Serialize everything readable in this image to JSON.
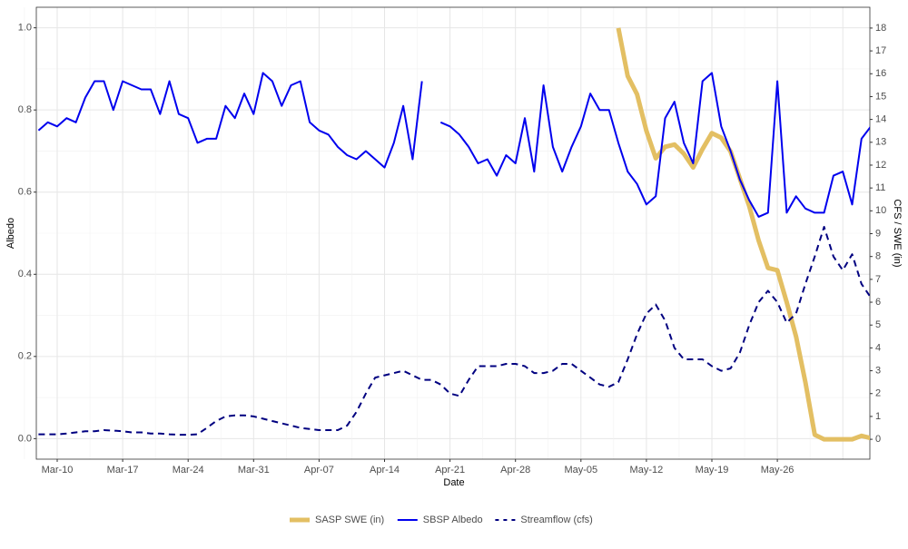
{
  "chart_data": {
    "type": "line",
    "x_label": "Date",
    "y_label": "Albedo",
    "y2_label": "CFS / SWE (in)",
    "categories": [
      "Mar-08",
      "Mar-09",
      "Mar-10",
      "Mar-11",
      "Mar-12",
      "Mar-13",
      "Mar-14",
      "Mar-15",
      "Mar-16",
      "Mar-17",
      "Mar-18",
      "Mar-19",
      "Mar-20",
      "Mar-21",
      "Mar-22",
      "Mar-23",
      "Mar-24",
      "Mar-25",
      "Mar-26",
      "Mar-27",
      "Mar-28",
      "Mar-29",
      "Mar-30",
      "Mar-31",
      "Apr-01",
      "Apr-02",
      "Apr-03",
      "Apr-04",
      "Apr-05",
      "Apr-06",
      "Apr-07",
      "Apr-08",
      "Apr-09",
      "Apr-10",
      "Apr-11",
      "Apr-12",
      "Apr-13",
      "Apr-14",
      "Apr-15",
      "Apr-16",
      "Apr-17",
      "Apr-18",
      "Apr-19",
      "Apr-20",
      "Apr-21",
      "Apr-22",
      "Apr-23",
      "Apr-24",
      "Apr-25",
      "Apr-26",
      "Apr-27",
      "Apr-28",
      "Apr-29",
      "Apr-30",
      "May-01",
      "May-02",
      "May-03",
      "May-04",
      "May-05",
      "May-06",
      "May-07",
      "May-08",
      "May-09",
      "May-10",
      "May-11",
      "May-12",
      "May-13",
      "May-14",
      "May-15",
      "May-16",
      "May-17",
      "May-18",
      "May-19",
      "May-20",
      "May-21",
      "May-22",
      "May-23",
      "May-24",
      "May-25",
      "May-26",
      "May-27",
      "May-28",
      "May-29",
      "May-30",
      "May-31",
      "Jun-01",
      "Jun-02",
      "Jun-03",
      "Jun-04",
      "Jun-05"
    ],
    "xticks": [
      "Mar-10",
      "Mar-17",
      "Mar-24",
      "Mar-31",
      "Apr-07",
      "Apr-14",
      "Apr-21",
      "Apr-28",
      "May-05",
      "May-12",
      "May-19",
      "May-26"
    ],
    "ylim": [
      -0.05,
      1.05
    ],
    "yticks": [
      {
        "value": 0,
        "label": "0.0"
      },
      0.2,
      0.4,
      0.6,
      0.8,
      {
        "value": 1,
        "label": "1.0"
      }
    ],
    "y2lim": [
      -0.87,
      18.91
    ],
    "y2ticks": [
      0,
      1,
      2,
      3,
      4,
      5,
      6,
      7,
      8,
      9,
      10,
      11,
      12,
      13,
      14,
      15,
      16,
      17,
      18
    ],
    "grid": true,
    "legend": "bottom",
    "series": [
      {
        "name": "SASP SWE (in)",
        "color": "#e3bf63",
        "axis": "y2",
        "style": "solid",
        "width": 5,
        "values": [
          null,
          null,
          null,
          null,
          null,
          null,
          null,
          null,
          null,
          null,
          null,
          null,
          null,
          null,
          null,
          null,
          null,
          null,
          null,
          null,
          null,
          null,
          null,
          null,
          null,
          null,
          null,
          null,
          null,
          null,
          null,
          null,
          null,
          null,
          null,
          null,
          null,
          null,
          null,
          null,
          null,
          null,
          null,
          null,
          null,
          null,
          null,
          null,
          null,
          null,
          null,
          null,
          null,
          null,
          null,
          null,
          null,
          null,
          null,
          null,
          null,
          null,
          18,
          15.9,
          15.1,
          13.5,
          12.3,
          12.8,
          12.9,
          12.5,
          11.9,
          12.7,
          13.4,
          13.2,
          12.6,
          11.4,
          10.2,
          8.7,
          7.5,
          7.4,
          6.0,
          4.5,
          2.5,
          0.2,
          0,
          0,
          0,
          0,
          0.15,
          0.05
        ]
      },
      {
        "name": "SBSP Albedo",
        "color": "#0000ee",
        "axis": "y",
        "style": "solid",
        "width": 2,
        "values": [
          0.75,
          0.77,
          0.76,
          0.78,
          0.77,
          0.83,
          0.87,
          0.87,
          0.8,
          0.87,
          0.86,
          0.85,
          0.85,
          0.79,
          0.87,
          0.79,
          0.78,
          0.72,
          0.73,
          0.73,
          0.81,
          0.78,
          0.84,
          0.79,
          0.89,
          0.87,
          0.81,
          0.86,
          0.87,
          0.77,
          0.75,
          0.74,
          0.71,
          0.69,
          0.68,
          0.7,
          0.68,
          0.66,
          0.72,
          0.81,
          0.68,
          0.87,
          null,
          0.77,
          0.76,
          0.74,
          0.71,
          0.67,
          0.68,
          0.64,
          0.69,
          0.67,
          0.78,
          0.65,
          0.86,
          0.71,
          0.65,
          0.71,
          0.76,
          0.84,
          0.8,
          0.8,
          0.72,
          0.65,
          0.62,
          0.57,
          0.59,
          0.78,
          0.82,
          0.72,
          0.67,
          0.87,
          0.89,
          0.76,
          0.7,
          0.63,
          0.58,
          0.54,
          0.55,
          0.87,
          0.55,
          0.59,
          0.56,
          0.55,
          0.55,
          0.64,
          0.65,
          0.57,
          0.73,
          0.76
        ]
      },
      {
        "name": "Streamflow (cfs)",
        "color": "#000080",
        "axis": "y2",
        "style": "dashed",
        "width": 2,
        "values": [
          0.22,
          0.22,
          0.22,
          0.25,
          0.3,
          0.35,
          0.35,
          0.4,
          0.38,
          0.35,
          0.3,
          0.3,
          0.25,
          0.25,
          0.22,
          0.2,
          0.2,
          0.22,
          0.5,
          0.8,
          1.0,
          1.05,
          1.05,
          1.0,
          0.9,
          0.8,
          0.7,
          0.6,
          0.5,
          0.45,
          0.4,
          0.4,
          0.4,
          0.6,
          1.2,
          2.0,
          2.7,
          2.8,
          2.9,
          3.0,
          2.8,
          2.6,
          2.6,
          2.4,
          2.0,
          1.9,
          2.6,
          3.2,
          3.2,
          3.2,
          3.3,
          3.3,
          3.2,
          2.9,
          2.9,
          3.0,
          3.3,
          3.3,
          3.0,
          2.7,
          2.4,
          2.3,
          2.5,
          3.5,
          4.6,
          5.5,
          5.9,
          5.2,
          4.0,
          3.5,
          3.5,
          3.5,
          3.2,
          3.0,
          3.1,
          3.8,
          5.0,
          6.0,
          6.5,
          6.0,
          5.1,
          5.5,
          6.8,
          8.0,
          9.3,
          8.0,
          7.4,
          8.1,
          6.8,
          6.2
        ]
      }
    ]
  }
}
